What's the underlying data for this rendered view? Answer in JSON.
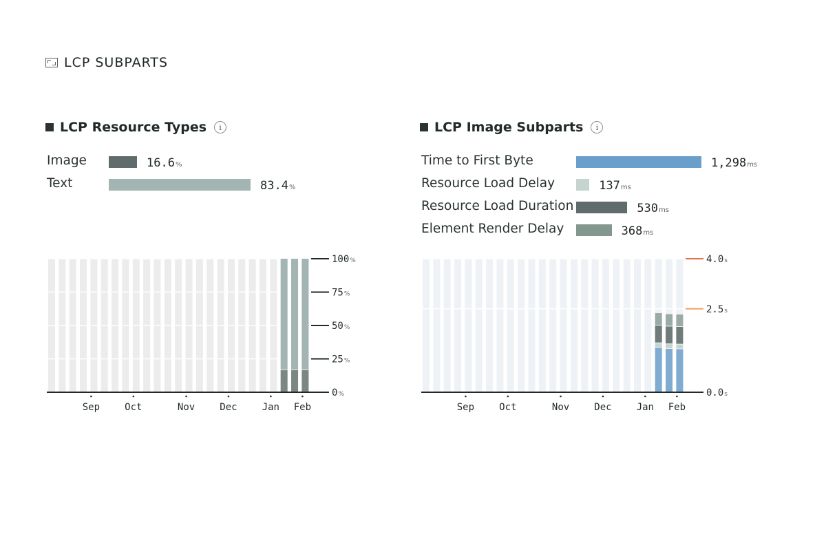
{
  "section": {
    "title": "LCP SUBPARTS",
    "icon": "frame-corners-icon"
  },
  "left": {
    "title": "LCP Resource Types",
    "info_label": "i",
    "rows": [
      {
        "label": "Image",
        "value": "16.6",
        "unit": "%",
        "color": "#5f6c6b",
        "pct": 16.6
      },
      {
        "label": "Text",
        "value": "83.4",
        "unit": "%",
        "color": "#a3b5b2",
        "pct": 83.4
      }
    ]
  },
  "right": {
    "title": "LCP Image Subparts",
    "info_label": "i",
    "rows": [
      {
        "label": "Time to First Byte",
        "value": "1,298",
        "unit": "ms",
        "color": "#6a9fcb",
        "ms": 1298
      },
      {
        "label": "Resource Load Delay",
        "value": "137",
        "unit": "ms",
        "color": "#c6d4d0",
        "ms": 137
      },
      {
        "label": "Resource Load Duration",
        "value": "530",
        "unit": "ms",
        "color": "#5f6c6b",
        "ms": 530
      },
      {
        "label": "Element Render Delay",
        "value": "368",
        "unit": "ms",
        "color": "#84978f",
        "ms": 368
      }
    ]
  },
  "chart_data": [
    {
      "type": "bar",
      "stacked": true,
      "bars": 25,
      "x_ticks": [
        {
          "label": "Sep",
          "bar": 4
        },
        {
          "label": "Oct",
          "bar": 8
        },
        {
          "label": "Nov",
          "bar": 13
        },
        {
          "label": "Dec",
          "bar": 17
        },
        {
          "label": "Jan",
          "bar": 21
        },
        {
          "label": "Feb",
          "bar": 24
        }
      ],
      "y_ticks": [
        {
          "value": 100,
          "label": "100",
          "unit": "%"
        },
        {
          "value": 75,
          "label": "75",
          "unit": "%"
        },
        {
          "value": 50,
          "label": "50",
          "unit": "%"
        },
        {
          "value": 25,
          "label": "25",
          "unit": "%"
        },
        {
          "value": 0,
          "label": "0",
          "unit": "%"
        }
      ],
      "ylim": [
        0,
        100
      ],
      "empty_color": "#ececec",
      "series": [
        {
          "name": "Image",
          "color": "#7b8882",
          "data": [
            [
              22,
              16.6
            ],
            [
              23,
              16.6
            ],
            [
              24,
              16.6
            ]
          ]
        },
        {
          "name": "Text",
          "color": "#a3b5b2",
          "data": [
            [
              22,
              83.4
            ],
            [
              23,
              83.4
            ],
            [
              24,
              83.4
            ]
          ]
        }
      ]
    },
    {
      "type": "bar",
      "stacked": true,
      "bars": 25,
      "x_ticks": [
        {
          "label": "Sep",
          "bar": 4
        },
        {
          "label": "Oct",
          "bar": 8
        },
        {
          "label": "Nov",
          "bar": 13
        },
        {
          "label": "Dec",
          "bar": 17
        },
        {
          "label": "Jan",
          "bar": 21
        },
        {
          "label": "Feb",
          "bar": 24
        }
      ],
      "y_ticks": [
        {
          "value": 4.0,
          "label": "4.0",
          "unit": "s",
          "color": "#e5704a"
        },
        {
          "value": 2.5,
          "label": "2.5",
          "unit": "s",
          "color": "#f0a35e"
        },
        {
          "value": 0.0,
          "label": "0.0",
          "unit": "s",
          "color": "#222a2a"
        }
      ],
      "ylim": [
        0,
        4
      ],
      "empty_color": "#eef1f6",
      "series": [
        {
          "name": "Time to First Byte",
          "color": "#80acd1",
          "data": [
            [
              22,
              1.33
            ],
            [
              23,
              1.3
            ],
            [
              24,
              1.29
            ]
          ]
        },
        {
          "name": "Resource Load Delay",
          "color": "#c6d4d0",
          "data": [
            [
              22,
              0.14
            ],
            [
              23,
              0.14
            ],
            [
              24,
              0.14
            ]
          ]
        },
        {
          "name": "Resource Load Duration",
          "color": "#6f7c79",
          "data": [
            [
              22,
              0.53
            ],
            [
              23,
              0.53
            ],
            [
              24,
              0.53
            ]
          ]
        },
        {
          "name": "Element Render Delay",
          "color": "#9aaba5",
          "data": [
            [
              22,
              0.37
            ],
            [
              23,
              0.37
            ],
            [
              24,
              0.37
            ]
          ]
        }
      ]
    }
  ]
}
